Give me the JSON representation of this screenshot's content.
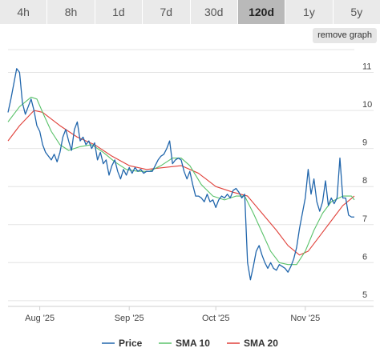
{
  "tabs": [
    {
      "label": "4h",
      "active": false
    },
    {
      "label": "8h",
      "active": false
    },
    {
      "label": "1d",
      "active": false
    },
    {
      "label": "7d",
      "active": false
    },
    {
      "label": "30d",
      "active": false
    },
    {
      "label": "120d",
      "active": true
    },
    {
      "label": "1y",
      "active": false
    },
    {
      "label": "5y",
      "active": false
    }
  ],
  "remove_graph_label": "remove graph",
  "chart_data": {
    "type": "line",
    "x_range": [
      "2025-07-21",
      "2025-11-18"
    ],
    "ylim": [
      4.85,
      11.6
    ],
    "y_ticks": [
      5,
      6,
      7,
      8,
      9,
      10,
      11
    ],
    "x_ticks": [
      {
        "date": "2025-08-01",
        "label": "Aug '25"
      },
      {
        "date": "2025-09-01",
        "label": "Sep '25"
      },
      {
        "date": "2025-10-01",
        "label": "Oct '25"
      },
      {
        "date": "2025-11-01",
        "label": "Nov '25"
      }
    ],
    "grid": "horizontal",
    "legend_position": "bottom",
    "series": [
      {
        "name": "Price",
        "color": "#2166ac",
        "points": [
          [
            "2025-07-21",
            9.95
          ],
          [
            "2025-07-22",
            10.3
          ],
          [
            "2025-07-23",
            10.7
          ],
          [
            "2025-07-24",
            11.1
          ],
          [
            "2025-07-25",
            11.0
          ],
          [
            "2025-07-26",
            10.2
          ],
          [
            "2025-07-27",
            9.9
          ],
          [
            "2025-07-28",
            10.1
          ],
          [
            "2025-07-29",
            10.3
          ],
          [
            "2025-07-30",
            10.0
          ],
          [
            "2025-07-31",
            9.6
          ],
          [
            "2025-08-01",
            9.45
          ],
          [
            "2025-08-02",
            9.1
          ],
          [
            "2025-08-03",
            8.9
          ],
          [
            "2025-08-04",
            8.8
          ],
          [
            "2025-08-05",
            8.7
          ],
          [
            "2025-08-06",
            8.85
          ],
          [
            "2025-08-07",
            8.65
          ],
          [
            "2025-08-08",
            8.9
          ],
          [
            "2025-08-09",
            9.3
          ],
          [
            "2025-08-10",
            9.5
          ],
          [
            "2025-08-11",
            9.2
          ],
          [
            "2025-08-12",
            8.95
          ],
          [
            "2025-08-13",
            9.5
          ],
          [
            "2025-08-14",
            9.7
          ],
          [
            "2025-08-15",
            9.2
          ],
          [
            "2025-08-16",
            9.3
          ],
          [
            "2025-08-17",
            9.1
          ],
          [
            "2025-08-18",
            9.2
          ],
          [
            "2025-08-19",
            9.0
          ],
          [
            "2025-08-20",
            9.15
          ],
          [
            "2025-08-21",
            8.7
          ],
          [
            "2025-08-22",
            8.9
          ],
          [
            "2025-08-23",
            8.6
          ],
          [
            "2025-08-24",
            8.7
          ],
          [
            "2025-08-25",
            8.3
          ],
          [
            "2025-08-26",
            8.55
          ],
          [
            "2025-08-27",
            8.7
          ],
          [
            "2025-08-28",
            8.4
          ],
          [
            "2025-08-29",
            8.2
          ],
          [
            "2025-08-30",
            8.45
          ],
          [
            "2025-08-31",
            8.3
          ],
          [
            "2025-09-01",
            8.5
          ],
          [
            "2025-09-02",
            8.35
          ],
          [
            "2025-09-03",
            8.5
          ],
          [
            "2025-09-04",
            8.4
          ],
          [
            "2025-09-05",
            8.45
          ],
          [
            "2025-09-06",
            8.35
          ],
          [
            "2025-09-07",
            8.4
          ],
          [
            "2025-09-08",
            8.4
          ],
          [
            "2025-09-09",
            8.4
          ],
          [
            "2025-09-10",
            8.55
          ],
          [
            "2025-09-11",
            8.7
          ],
          [
            "2025-09-12",
            8.8
          ],
          [
            "2025-09-13",
            8.85
          ],
          [
            "2025-09-14",
            9.0
          ],
          [
            "2025-09-15",
            9.2
          ],
          [
            "2025-09-16",
            8.6
          ],
          [
            "2025-09-17",
            8.7
          ],
          [
            "2025-09-18",
            8.75
          ],
          [
            "2025-09-19",
            8.7
          ],
          [
            "2025-09-20",
            8.4
          ],
          [
            "2025-09-21",
            8.2
          ],
          [
            "2025-09-22",
            8.4
          ],
          [
            "2025-09-23",
            8.05
          ],
          [
            "2025-09-24",
            7.75
          ],
          [
            "2025-09-25",
            7.75
          ],
          [
            "2025-09-26",
            7.7
          ],
          [
            "2025-09-27",
            7.6
          ],
          [
            "2025-09-28",
            7.8
          ],
          [
            "2025-09-29",
            7.6
          ],
          [
            "2025-09-30",
            7.65
          ],
          [
            "2025-10-01",
            7.45
          ],
          [
            "2025-10-02",
            7.65
          ],
          [
            "2025-10-03",
            7.75
          ],
          [
            "2025-10-04",
            7.7
          ],
          [
            "2025-10-05",
            7.8
          ],
          [
            "2025-10-06",
            7.7
          ],
          [
            "2025-10-07",
            7.9
          ],
          [
            "2025-10-08",
            7.95
          ],
          [
            "2025-10-09",
            7.85
          ],
          [
            "2025-10-10",
            7.7
          ],
          [
            "2025-10-11",
            7.8
          ],
          [
            "2025-10-12",
            6.0
          ],
          [
            "2025-10-13",
            5.55
          ],
          [
            "2025-10-14",
            5.9
          ],
          [
            "2025-10-15",
            6.3
          ],
          [
            "2025-10-16",
            6.45
          ],
          [
            "2025-10-17",
            6.2
          ],
          [
            "2025-10-18",
            6.0
          ],
          [
            "2025-10-19",
            5.85
          ],
          [
            "2025-10-20",
            6.0
          ],
          [
            "2025-10-21",
            5.85
          ],
          [
            "2025-10-22",
            5.8
          ],
          [
            "2025-10-23",
            5.95
          ],
          [
            "2025-10-24",
            5.9
          ],
          [
            "2025-10-25",
            5.85
          ],
          [
            "2025-10-26",
            5.75
          ],
          [
            "2025-10-27",
            5.9
          ],
          [
            "2025-10-28",
            6.1
          ],
          [
            "2025-10-29",
            6.4
          ],
          [
            "2025-10-30",
            6.9
          ],
          [
            "2025-10-31",
            7.3
          ],
          [
            "2025-11-01",
            7.7
          ],
          [
            "2025-11-02",
            8.45
          ],
          [
            "2025-11-03",
            7.8
          ],
          [
            "2025-11-04",
            8.2
          ],
          [
            "2025-11-05",
            7.6
          ],
          [
            "2025-11-06",
            7.35
          ],
          [
            "2025-11-07",
            7.6
          ],
          [
            "2025-11-08",
            8.15
          ],
          [
            "2025-11-09",
            7.5
          ],
          [
            "2025-11-10",
            7.7
          ],
          [
            "2025-11-11",
            7.55
          ],
          [
            "2025-11-12",
            7.7
          ],
          [
            "2025-11-13",
            8.75
          ],
          [
            "2025-11-14",
            7.7
          ],
          [
            "2025-11-15",
            7.7
          ],
          [
            "2025-11-16",
            7.25
          ],
          [
            "2025-11-17",
            7.2
          ],
          [
            "2025-11-18",
            7.2
          ]
        ]
      },
      {
        "name": "SMA 10",
        "color": "#5ac26a",
        "points": [
          [
            "2025-07-21",
            9.7
          ],
          [
            "2025-07-25",
            10.1
          ],
          [
            "2025-07-29",
            10.35
          ],
          [
            "2025-07-31",
            10.3
          ],
          [
            "2025-08-02",
            9.95
          ],
          [
            "2025-08-05",
            9.45
          ],
          [
            "2025-08-08",
            9.1
          ],
          [
            "2025-08-11",
            8.95
          ],
          [
            "2025-08-15",
            9.05
          ],
          [
            "2025-08-19",
            9.1
          ],
          [
            "2025-08-23",
            8.9
          ],
          [
            "2025-08-27",
            8.65
          ],
          [
            "2025-08-31",
            8.45
          ],
          [
            "2025-09-04",
            8.4
          ],
          [
            "2025-09-08",
            8.4
          ],
          [
            "2025-09-12",
            8.55
          ],
          [
            "2025-09-16",
            8.75
          ],
          [
            "2025-09-19",
            8.75
          ],
          [
            "2025-09-22",
            8.55
          ],
          [
            "2025-09-26",
            8.05
          ],
          [
            "2025-09-30",
            7.75
          ],
          [
            "2025-10-04",
            7.65
          ],
          [
            "2025-10-08",
            7.75
          ],
          [
            "2025-10-11",
            7.75
          ],
          [
            "2025-10-14",
            7.3
          ],
          [
            "2025-10-17",
            6.8
          ],
          [
            "2025-10-20",
            6.3
          ],
          [
            "2025-10-23",
            6.0
          ],
          [
            "2025-10-26",
            5.95
          ],
          [
            "2025-10-29",
            5.95
          ],
          [
            "2025-11-01",
            6.3
          ],
          [
            "2025-11-04",
            6.85
          ],
          [
            "2025-11-07",
            7.3
          ],
          [
            "2025-11-10",
            7.6
          ],
          [
            "2025-11-14",
            7.75
          ],
          [
            "2025-11-17",
            7.75
          ],
          [
            "2025-11-18",
            7.65
          ]
        ]
      },
      {
        "name": "SMA 20",
        "color": "#e0413a",
        "points": [
          [
            "2025-07-21",
            9.2
          ],
          [
            "2025-07-25",
            9.6
          ],
          [
            "2025-07-30",
            10.0
          ],
          [
            "2025-08-02",
            9.95
          ],
          [
            "2025-08-08",
            9.6
          ],
          [
            "2025-08-14",
            9.3
          ],
          [
            "2025-08-20",
            9.1
          ],
          [
            "2025-08-26",
            8.8
          ],
          [
            "2025-09-01",
            8.55
          ],
          [
            "2025-09-07",
            8.45
          ],
          [
            "2025-09-13",
            8.5
          ],
          [
            "2025-09-19",
            8.55
          ],
          [
            "2025-09-25",
            8.35
          ],
          [
            "2025-10-01",
            8.0
          ],
          [
            "2025-10-07",
            7.85
          ],
          [
            "2025-10-12",
            7.75
          ],
          [
            "2025-10-17",
            7.3
          ],
          [
            "2025-10-22",
            6.85
          ],
          [
            "2025-10-26",
            6.45
          ],
          [
            "2025-10-30",
            6.2
          ],
          [
            "2025-11-02",
            6.3
          ],
          [
            "2025-11-06",
            6.7
          ],
          [
            "2025-11-10",
            7.1
          ],
          [
            "2025-11-14",
            7.5
          ],
          [
            "2025-11-18",
            7.75
          ]
        ]
      }
    ]
  }
}
